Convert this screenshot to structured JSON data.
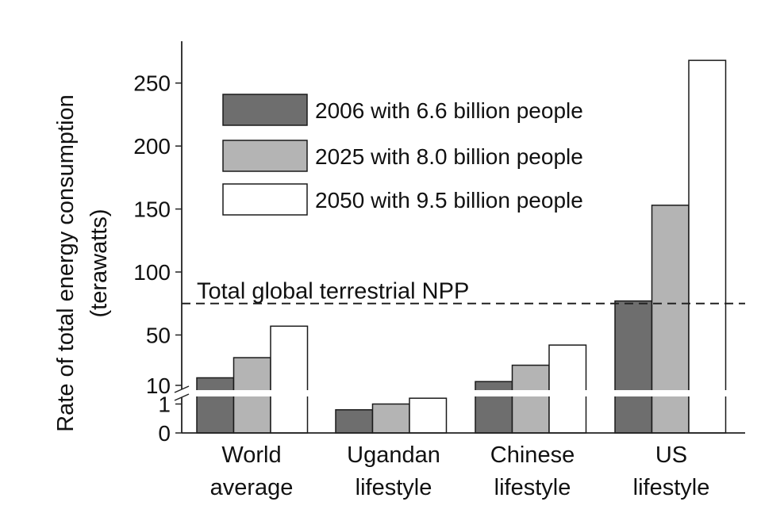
{
  "chart_data": {
    "type": "bar",
    "title": "",
    "ylabel": "Rate of total energy consumption",
    "ylabel_unit": "(terawatts)",
    "categories": [
      {
        "line1": "World",
        "line2": "average"
      },
      {
        "line1": "Ugandan",
        "line2": "lifestyle"
      },
      {
        "line1": "Chinese",
        "line2": "lifestyle"
      },
      {
        "line1": "US",
        "line2": "lifestyle"
      }
    ],
    "series": [
      {
        "name": "2006 with 6.6 billion people",
        "color": "#6e6e6e",
        "values": [
          16,
          0.8,
          13,
          77
        ]
      },
      {
        "name": "2025 with 8.0 billion people",
        "color": "#b4b4b4",
        "values": [
          32,
          1.0,
          26,
          153
        ]
      },
      {
        "name": "2050 with 9.5 billion people",
        "color": "#ffffff",
        "values": [
          57,
          1.2,
          42,
          268
        ]
      }
    ],
    "y_axis_broken": true,
    "ylim_lower": [
      0,
      1.4
    ],
    "ylim_upper": [
      10,
      270
    ],
    "yticks_lower": [
      "0",
      "1"
    ],
    "yticks_upper": [
      "10",
      "50",
      "100",
      "150",
      "200",
      "250"
    ],
    "ytick_values_lower": [
      0,
      1
    ],
    "ytick_values_upper": [
      10,
      50,
      100,
      150,
      200,
      250
    ],
    "reference_line": {
      "label": "Total global terrestrial NPP",
      "value": 75,
      "style": "dashed"
    },
    "legend_position": "top-left",
    "grid": false
  }
}
